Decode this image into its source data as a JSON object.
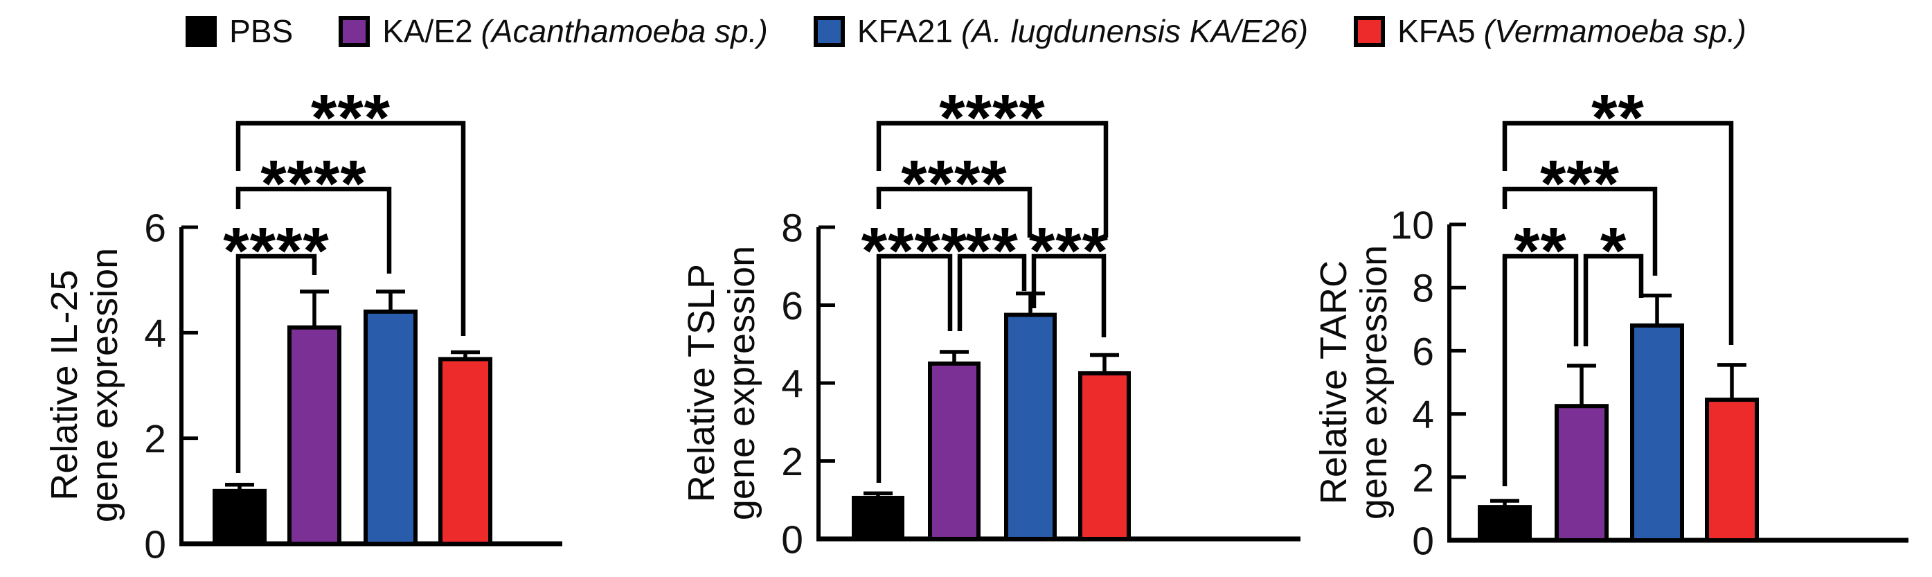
{
  "figure": {
    "background": "#ffffff",
    "description": "Three bar charts of relative gene expression (IL-25, TSLP, TARC) with significance brackets"
  },
  "legend": {
    "items": [
      {
        "label": "PBS",
        "species": "",
        "color": "#000000"
      },
      {
        "label": "KA/E2",
        "species": "(Acanthamoeba sp.)",
        "color": "#7B3095"
      },
      {
        "label": "KFA21",
        "species": "(A. lugdunensis KA/E26)",
        "color": "#2A5CAC"
      },
      {
        "label": "KFA5",
        "species": "(Vermamoeba sp.)",
        "color": "#EE2B2B"
      }
    ]
  },
  "chart_data": [
    {
      "type": "bar",
      "gene": "IL-25",
      "ylabel_lines": [
        "Relative IL-25",
        "gene expression"
      ],
      "categories": [
        "PBS",
        "KA/E2",
        "KFA21",
        "KFA5"
      ],
      "values": [
        1.0,
        4.1,
        4.4,
        3.5
      ],
      "errors": [
        0.12,
        0.68,
        0.38,
        0.13
      ],
      "ylim": [
        0,
        6
      ],
      "yticks": [
        0,
        2,
        4,
        6
      ],
      "grid": false,
      "legend_position": "top",
      "bar_colors": [
        "#000000",
        "#7B3095",
        "#2A5CAC",
        "#EE2B2B"
      ],
      "comparisons": [
        {
          "from": "PBS",
          "to": "KA/E2",
          "label": "****"
        },
        {
          "from": "PBS",
          "to": "KFA21",
          "label": "****"
        },
        {
          "from": "PBS",
          "to": "KFA5",
          "label": "***"
        }
      ]
    },
    {
      "type": "bar",
      "gene": "TSLP",
      "ylabel_lines": [
        "Relative TSLP",
        "gene expression"
      ],
      "categories": [
        "PBS",
        "KA/E2",
        "KFA21",
        "KFA5"
      ],
      "values": [
        1.05,
        4.5,
        5.75,
        4.25
      ],
      "errors": [
        0.12,
        0.3,
        0.55,
        0.47
      ],
      "ylim": [
        0,
        8
      ],
      "yticks": [
        0,
        2,
        4,
        6,
        8
      ],
      "grid": false,
      "legend_position": "top",
      "bar_colors": [
        "#000000",
        "#7B3095",
        "#2A5CAC",
        "#EE2B2B"
      ],
      "comparisons": [
        {
          "from": "PBS",
          "to": "KA/E2",
          "label": "****"
        },
        {
          "from": "KA/E2",
          "to": "KFA21",
          "label": "**"
        },
        {
          "from": "KFA21",
          "to": "KFA5",
          "label": "***"
        },
        {
          "from": "PBS",
          "to": "KFA21",
          "label": "****"
        },
        {
          "from": "PBS",
          "to": "KFA5",
          "label": "****"
        }
      ]
    },
    {
      "type": "bar",
      "gene": "TARC",
      "ylabel_lines": [
        "Relative TARC",
        "gene expression"
      ],
      "categories": [
        "PBS",
        "KA/E2",
        "KFA21",
        "KFA5"
      ],
      "values": [
        1.05,
        4.25,
        6.8,
        4.45
      ],
      "errors": [
        0.2,
        1.28,
        0.95,
        1.1
      ],
      "ylim": [
        0,
        10
      ],
      "yticks": [
        0,
        2,
        4,
        6,
        8,
        10
      ],
      "grid": false,
      "legend_position": "top",
      "bar_colors": [
        "#000000",
        "#7B3095",
        "#2A5CAC",
        "#EE2B2B"
      ],
      "comparisons": [
        {
          "from": "PBS",
          "to": "KA/E2",
          "label": "**"
        },
        {
          "from": "KA/E2",
          "to": "KFA21",
          "label": "*"
        },
        {
          "from": "PBS",
          "to": "KFA21",
          "label": "***"
        },
        {
          "from": "PBS",
          "to": "KFA5",
          "label": "**"
        }
      ]
    }
  ]
}
